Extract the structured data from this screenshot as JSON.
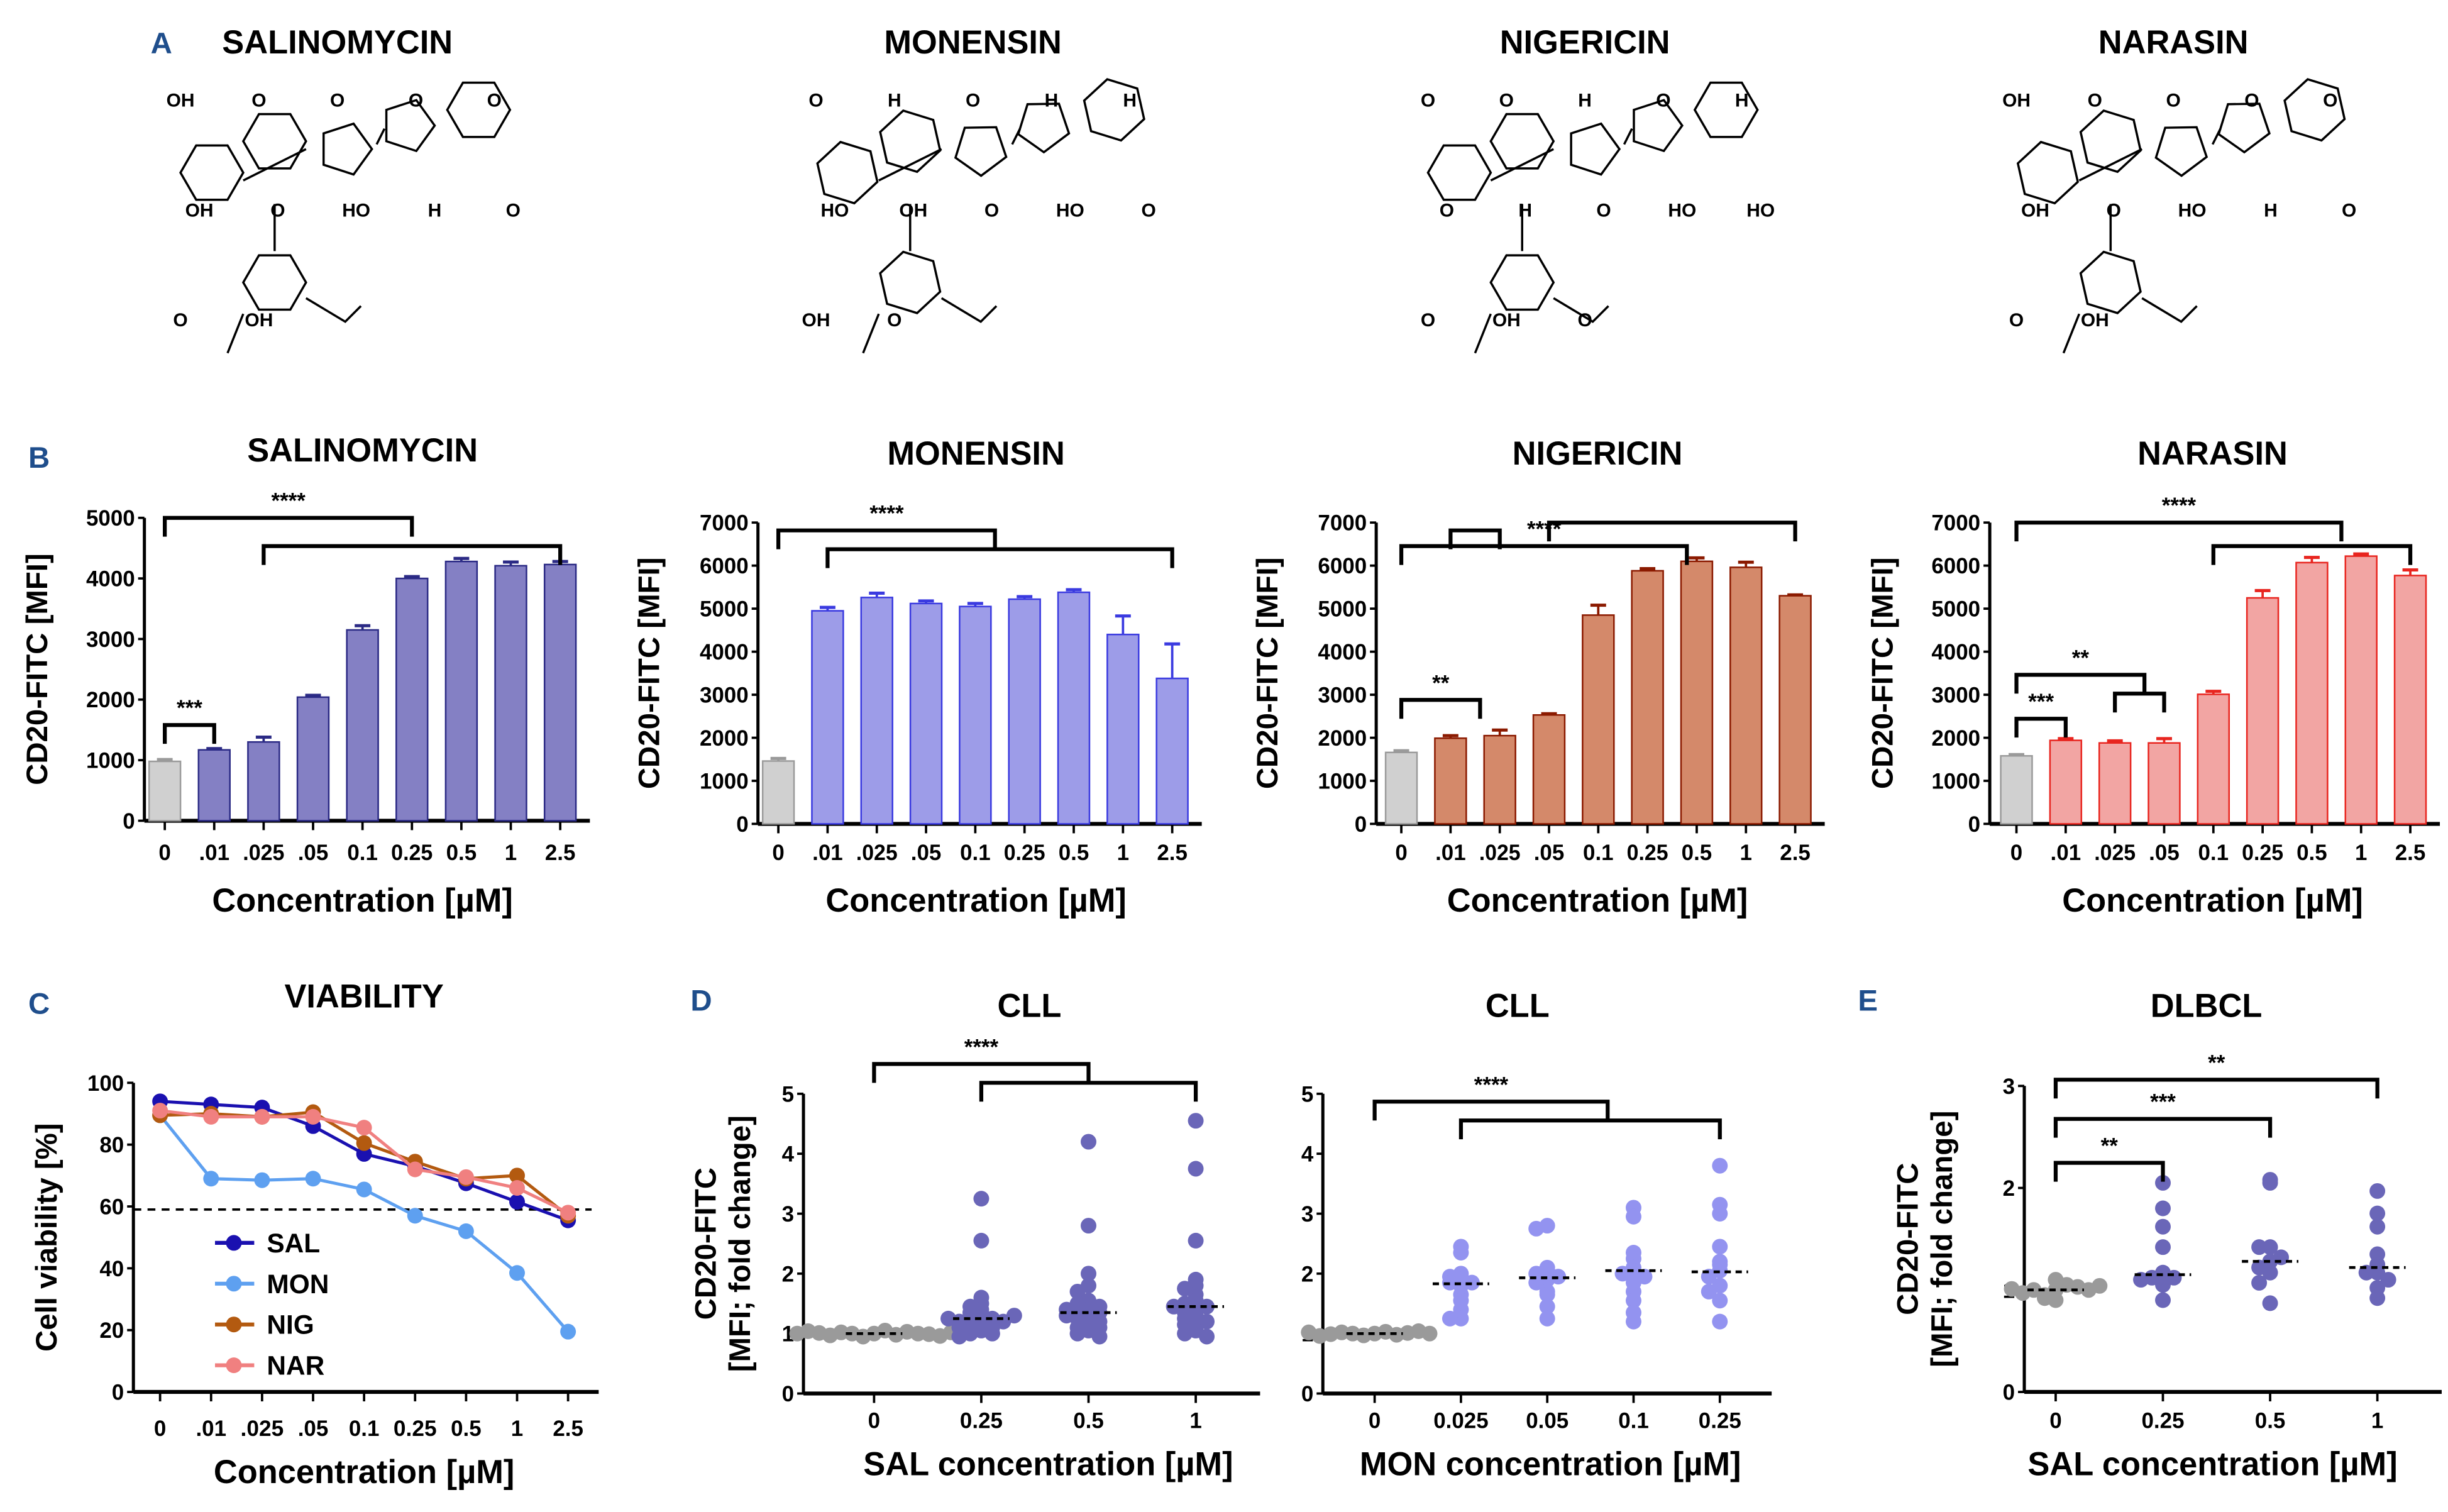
{
  "panel_A": {
    "label": "A",
    "molecules": [
      {
        "name": "SALINOMYCIN",
        "atom_labels": [
          "OH",
          "O",
          "O",
          "O",
          "O",
          "OH",
          "O",
          "HO",
          "H",
          "O",
          "O",
          "OH"
        ]
      },
      {
        "name": "MONENSIN",
        "atom_labels": [
          "O",
          "H",
          "O",
          "H",
          "H",
          "HO",
          "OH",
          "O",
          "HO",
          "O",
          "OH",
          "O"
        ]
      },
      {
        "name": "NIGERICIN",
        "atom_labels": [
          "O",
          "O",
          "H",
          "O",
          "H",
          "O",
          "H",
          "O",
          "HO",
          "HO",
          "O",
          "OH",
          "O"
        ]
      },
      {
        "name": "NARASIN",
        "atom_labels": [
          "OH",
          "O",
          "O",
          "O",
          "O",
          "OH",
          "O",
          "HO",
          "H",
          "O",
          "O",
          "OH"
        ]
      }
    ]
  },
  "chart_data": [
    {
      "panel": "B",
      "type": "bar",
      "title": "SALINOMYCIN",
      "xlabel": "Concentration [µM]",
      "ylabel": "CD20-FITC [MFI]",
      "categories": [
        "0",
        ".01",
        ".025",
        ".05",
        "0.1",
        "0.25",
        "0.5",
        "1",
        "2.5"
      ],
      "values": [
        980,
        1170,
        1300,
        2040,
        3150,
        4000,
        4280,
        4210,
        4230
      ],
      "errors": [
        30,
        20,
        80,
        30,
        70,
        30,
        50,
        60,
        50
      ],
      "ylim": [
        0,
        5000
      ],
      "yticks": [
        "0",
        "1000",
        "2000",
        "3000",
        "4000",
        "5000"
      ],
      "colors": {
        "bar": "#8480c4",
        "edge": "#2b2a85",
        "control": "#d0d0d0"
      },
      "significance": [
        {
          "from": 0,
          "to": 1,
          "label": "***"
        },
        {
          "from": 0,
          "to": 5,
          "label": "****"
        },
        {
          "from": 2,
          "to": 8,
          "label": ""
        }
      ]
    },
    {
      "panel": "B2",
      "type": "bar",
      "title": "MONENSIN",
      "xlabel": "Concentration [µM]",
      "ylabel": "CD20-FITC [MFI]",
      "categories": [
        "0",
        ".01",
        ".025",
        ".05",
        "0.1",
        "0.25",
        "0.5",
        "1",
        "2.5"
      ],
      "values": [
        1460,
        4950,
        5260,
        5120,
        5050,
        5220,
        5380,
        4400,
        3380
      ],
      "errors": [
        60,
        80,
        100,
        60,
        70,
        60,
        60,
        430,
        800
      ],
      "ylim": [
        0,
        7000
      ],
      "yticks": [
        "0",
        "1000",
        "2000",
        "3000",
        "4000",
        "5000",
        "6000",
        "7000"
      ],
      "colors": {
        "bar": "#9d9ce8",
        "edge": "#3a3ae0",
        "control": "#d0d0d0"
      },
      "significance": [
        {
          "from": 0,
          "to": 4.4,
          "label": "****"
        },
        {
          "from": 1,
          "to": 8,
          "label": ""
        }
      ]
    },
    {
      "panel": "B3",
      "type": "bar",
      "title": "NIGERICIN",
      "xlabel": "Concentration [µM]",
      "ylabel": "CD20-FITC [MFI]",
      "categories": [
        "0",
        ".01",
        ".025",
        ".05",
        "0.1",
        "0.25",
        "0.5",
        "1",
        "2.5"
      ],
      "values": [
        1660,
        1990,
        2050,
        2530,
        4850,
        5880,
        6100,
        5960,
        5300
      ],
      "errors": [
        40,
        60,
        130,
        30,
        230,
        50,
        80,
        120,
        20
      ],
      "ylim": [
        0,
        7000
      ],
      "yticks": [
        "0",
        "1000",
        "2000",
        "3000",
        "4000",
        "5000",
        "6000",
        "7000"
      ],
      "colors": {
        "bar": "#d4896a",
        "edge": "#8b1a00",
        "control": "#d0d0d0"
      },
      "significance": [
        {
          "from": 0,
          "to": 1.6,
          "label": "**"
        },
        {
          "from": 1,
          "to": 2,
          "label": ""
        },
        {
          "from": 0,
          "to": 5.8,
          "label": "****"
        },
        {
          "from": 3,
          "to": 8,
          "label": ""
        }
      ]
    },
    {
      "panel": "B4",
      "type": "bar",
      "title": "NARASIN",
      "xlabel": "Concentration [µM]",
      "ylabel": "CD20-FITC [MFI]",
      "categories": [
        "0",
        ".01",
        ".025",
        ".05",
        "0.1",
        "0.25",
        "0.5",
        "1",
        "2.5"
      ],
      "values": [
        1580,
        1940,
        1880,
        1880,
        3010,
        5250,
        6070,
        6220,
        5770
      ],
      "errors": [
        30,
        40,
        50,
        100,
        70,
        170,
        120,
        50,
        130
      ],
      "ylim": [
        0,
        7000
      ],
      "yticks": [
        "0",
        "1000",
        "2000",
        "3000",
        "4000",
        "5000",
        "6000",
        "7000"
      ],
      "colors": {
        "bar": "#f2a5a3",
        "edge": "#e8251f",
        "control": "#d0d0d0"
      },
      "significance": [
        {
          "from": 0,
          "to": 1,
          "label": "***"
        },
        {
          "from": 0,
          "to": 2.6,
          "label": "**"
        },
        {
          "from": 2,
          "to": 3,
          "label": ""
        },
        {
          "from": 0,
          "to": 6.6,
          "label": "****"
        },
        {
          "from": 4,
          "to": 8,
          "label": ""
        }
      ]
    },
    {
      "panel": "C",
      "type": "line",
      "title": "VIABILITY",
      "xlabel": "Concentration [µM]",
      "ylabel": "Cell viability [%]",
      "categories": [
        "0",
        ".01",
        ".025",
        ".05",
        "0.1",
        "0.25",
        "0.5",
        "1",
        "2.5"
      ],
      "ylim": [
        0,
        100
      ],
      "yticks": [
        "0",
        "20",
        "40",
        "60",
        "80",
        "100"
      ],
      "threshold": 59,
      "legend": "inside-lower-left",
      "series": [
        {
          "name": "SAL",
          "color": "#1a10b0",
          "values": [
            94,
            93,
            92,
            86,
            77,
            73,
            67.5,
            61.5,
            55.5
          ]
        },
        {
          "name": "MON",
          "color": "#5ea0f0",
          "values": [
            89.5,
            69,
            68.5,
            69,
            65.5,
            57,
            52,
            38.5,
            19.5
          ]
        },
        {
          "name": "NIG",
          "color": "#b35a10",
          "values": [
            89.5,
            90,
            89,
            90.5,
            80.5,
            74.5,
            69,
            70,
            57
          ]
        },
        {
          "name": "NAR",
          "color": "#f08080",
          "values": [
            91,
            89,
            89,
            89,
            85.5,
            72,
            69.5,
            66,
            58
          ]
        }
      ]
    },
    {
      "panel": "D",
      "type": "scatter",
      "title": "CLL",
      "xlabel": "SAL concentration [µM]",
      "ylabel": [
        "CD20-FITC",
        "[MFI; fold change]"
      ],
      "categories": [
        "0",
        "0.25",
        "0.5",
        "1"
      ],
      "ylim": [
        0,
        5
      ],
      "yticks": [
        "0",
        "1",
        "2",
        "3",
        "4",
        "5"
      ],
      "colors": [
        "#9a9a9a",
        "#6a66b8",
        "#6a66b8",
        "#6a66b8"
      ],
      "medians": [
        1.0,
        1.25,
        1.35,
        1.45
      ],
      "groups": [
        [
          1,
          0.95,
          1.05,
          1,
          0.98,
          1.02,
          1.03,
          0.97,
          1,
          1.01,
          0.99,
          1.04,
          0.96,
          1,
          1.02
        ],
        [
          3.25,
          2.55,
          1.6,
          1.5,
          1.45,
          1.4,
          1.35,
          1.3,
          1.25,
          1.25,
          1.2,
          1.2,
          1.15,
          1.15,
          1.1,
          1.1,
          1.05,
          1.0,
          1.0,
          0.95,
          1.25,
          1.3
        ],
        [
          4.2,
          2.8,
          2.0,
          1.8,
          1.7,
          1.55,
          1.5,
          1.45,
          1.4,
          1.35,
          1.35,
          1.3,
          1.25,
          1.2,
          1.15,
          1.1,
          1.05,
          1.0,
          0.95,
          1.1,
          1.3,
          1.4
        ],
        [
          4.55,
          3.75,
          2.55,
          1.9,
          1.8,
          1.75,
          1.65,
          1.55,
          1.5,
          1.45,
          1.45,
          1.4,
          1.3,
          1.25,
          1.2,
          1.1,
          1.05,
          1.0,
          0.95,
          1.15,
          1.35
        ]
      ],
      "significance": [
        {
          "from": 0,
          "to": 2,
          "label": "****"
        },
        {
          "from": 1,
          "to": 3,
          "label": ""
        }
      ]
    },
    {
      "panel": "D2",
      "type": "scatter",
      "title": "CLL",
      "xlabel": "MON concentration [µM]",
      "ylabel": [
        "",
        ""
      ],
      "categories": [
        "0",
        "0.025",
        "0.05",
        "0.1",
        "0.25"
      ],
      "ylim": [
        0,
        5
      ],
      "yticks": [
        "0",
        "1",
        "2",
        "3",
        "4",
        "5"
      ],
      "colors": [
        "#9a9a9a",
        "#9393f0",
        "#9393f0",
        "#9393f0",
        "#9393f0"
      ],
      "medians": [
        1.0,
        1.83,
        1.93,
        2.05,
        2.03
      ],
      "groups": [
        [
          1,
          0.97,
          1.03,
          1,
          0.98,
          1.02,
          1.01,
          0.99,
          1.04,
          0.96,
          1,
          1.02
        ],
        [
          2.45,
          2.35,
          2.0,
          1.95,
          1.9,
          1.85,
          1.85,
          1.8,
          1.65,
          1.55,
          1.4,
          1.25,
          1.25
        ],
        [
          2.8,
          2.75,
          2.1,
          2.05,
          2.0,
          1.95,
          1.9,
          1.85,
          1.7,
          1.65,
          1.45,
          1.25
        ],
        [
          3.1,
          2.95,
          2.35,
          2.25,
          2.1,
          2.05,
          2.0,
          1.95,
          1.85,
          1.7,
          1.55,
          1.35,
          1.2
        ],
        [
          3.8,
          3.15,
          3.0,
          2.45,
          2.2,
          2.15,
          2.05,
          1.95,
          1.8,
          1.7,
          1.55,
          1.2
        ]
      ],
      "significance": [
        {
          "from": 0,
          "to": 2.7,
          "label": "****"
        },
        {
          "from": 1,
          "to": 4,
          "label": ""
        }
      ]
    },
    {
      "panel": "E",
      "type": "scatter",
      "title": "DLBCL",
      "xlabel": "SAL concentration [µM]",
      "ylabel": [
        "CD20-FITC",
        "[MFI; fold change]"
      ],
      "categories": [
        "0",
        "0.25",
        "0.5",
        "1"
      ],
      "ylim": [
        0,
        3
      ],
      "yticks": [
        "0",
        "1",
        "2",
        "3"
      ],
      "colors": [
        "#9a9a9a",
        "#6a66b8",
        "#6a66b8",
        "#6a66b8"
      ],
      "medians": [
        1.0,
        1.15,
        1.28,
        1.22
      ],
      "groups": [
        [
          1,
          0.95,
          1.05,
          1,
          0.9,
          1.1,
          1.03,
          0.97,
          1,
          1.01,
          0.92,
          1.04
        ],
        [
          2.05,
          1.8,
          1.62,
          1.42,
          1.17,
          1.12,
          1.12,
          1.1,
          1.05,
          0.9
        ],
        [
          2.08,
          2.05,
          1.42,
          1.42,
          1.32,
          1.28,
          1.22,
          1.17,
          1.07,
          0.87
        ],
        [
          1.97,
          1.75,
          1.62,
          1.35,
          1.25,
          1.17,
          1.17,
          1.1,
          1.02,
          0.92
        ]
      ],
      "significance": [
        {
          "from": 0,
          "to": 1,
          "label": "**"
        },
        {
          "from": 0,
          "to": 2,
          "label": "***"
        },
        {
          "from": 0,
          "to": 3,
          "label": "**"
        }
      ]
    }
  ]
}
